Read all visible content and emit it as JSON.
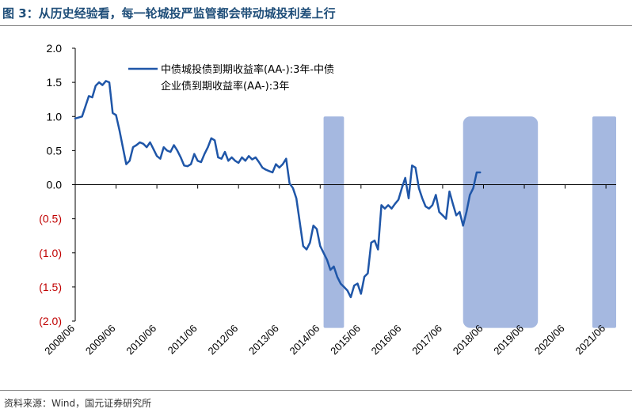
{
  "figure": {
    "title": "图 3：从历史经验看，每一轮城投严监管都会带动城投利差上行",
    "source": "资料来源：Wind，国元证券研究所"
  },
  "colors": {
    "line": "#1f56a8",
    "shade": "#a5b8e0",
    "title": "#1f4e79",
    "negative_tick": "#c00000",
    "axis": "#000000"
  },
  "chart_data": {
    "type": "line",
    "series": [
      {
        "name": "中债城投债到期收益率(AA-):3年-中债企业债到期收益率(AA-):3年",
        "legend_lines": [
          "中债城投债到期收益率(AA-):3年-中债",
          "企业债到期收益率(AA-):3年"
        ],
        "points": [
          [
            "2008-06",
            0.97
          ],
          [
            "2008-08",
            1.0
          ],
          [
            "2008-10",
            1.3
          ],
          [
            "2008-11",
            1.28
          ],
          [
            "2008-12",
            1.45
          ],
          [
            "2009-01",
            1.5
          ],
          [
            "2009-02",
            1.46
          ],
          [
            "2009-03",
            1.52
          ],
          [
            "2009-04",
            1.5
          ],
          [
            "2009-05",
            1.05
          ],
          [
            "2009-06",
            1.02
          ],
          [
            "2009-07",
            0.8
          ],
          [
            "2009-08",
            0.55
          ],
          [
            "2009-09",
            0.3
          ],
          [
            "2009-10",
            0.35
          ],
          [
            "2009-11",
            0.55
          ],
          [
            "2009-12",
            0.58
          ],
          [
            "2010-01",
            0.62
          ],
          [
            "2010-02",
            0.6
          ],
          [
            "2010-03",
            0.55
          ],
          [
            "2010-04",
            0.62
          ],
          [
            "2010-05",
            0.52
          ],
          [
            "2010-06",
            0.42
          ],
          [
            "2010-07",
            0.38
          ],
          [
            "2010-08",
            0.55
          ],
          [
            "2010-09",
            0.5
          ],
          [
            "2010-10",
            0.48
          ],
          [
            "2010-11",
            0.58
          ],
          [
            "2010-12",
            0.5
          ],
          [
            "2011-01",
            0.4
          ],
          [
            "2011-02",
            0.28
          ],
          [
            "2011-03",
            0.27
          ],
          [
            "2011-04",
            0.3
          ],
          [
            "2011-05",
            0.45
          ],
          [
            "2011-06",
            0.35
          ],
          [
            "2011-07",
            0.33
          ],
          [
            "2011-08",
            0.45
          ],
          [
            "2011-09",
            0.55
          ],
          [
            "2011-10",
            0.68
          ],
          [
            "2011-11",
            0.65
          ],
          [
            "2011-12",
            0.4
          ],
          [
            "2012-01",
            0.38
          ],
          [
            "2012-02",
            0.48
          ],
          [
            "2012-03",
            0.35
          ],
          [
            "2012-04",
            0.4
          ],
          [
            "2012-05",
            0.35
          ],
          [
            "2012-06",
            0.32
          ],
          [
            "2012-07",
            0.4
          ],
          [
            "2012-08",
            0.35
          ],
          [
            "2012-09",
            0.42
          ],
          [
            "2012-10",
            0.37
          ],
          [
            "2012-11",
            0.4
          ],
          [
            "2012-12",
            0.33
          ],
          [
            "2013-01",
            0.25
          ],
          [
            "2013-02",
            0.22
          ],
          [
            "2013-03",
            0.2
          ],
          [
            "2013-04",
            0.18
          ],
          [
            "2013-05",
            0.3
          ],
          [
            "2013-06",
            0.25
          ],
          [
            "2013-07",
            0.3
          ],
          [
            "2013-08",
            0.38
          ],
          [
            "2013-09",
            0.02
          ],
          [
            "2013-10",
            -0.05
          ],
          [
            "2013-11",
            -0.2
          ],
          [
            "2013-12",
            -0.55
          ],
          [
            "2014-01",
            -0.9
          ],
          [
            "2014-02",
            -0.95
          ],
          [
            "2014-03",
            -0.85
          ],
          [
            "2014-04",
            -0.6
          ],
          [
            "2014-05",
            -0.65
          ],
          [
            "2014-06",
            -0.9
          ],
          [
            "2014-07",
            -1.0
          ],
          [
            "2014-08",
            -1.1
          ],
          [
            "2014-09",
            -1.25
          ],
          [
            "2014-10",
            -1.2
          ],
          [
            "2014-11",
            -1.35
          ],
          [
            "2014-12",
            -1.45
          ],
          [
            "2015-01",
            -1.5
          ],
          [
            "2015-02",
            -1.55
          ],
          [
            "2015-03",
            -1.65
          ],
          [
            "2015-04",
            -1.48
          ],
          [
            "2015-05",
            -1.45
          ],
          [
            "2015-06",
            -1.6
          ],
          [
            "2015-07",
            -1.35
          ],
          [
            "2015-08",
            -1.3
          ],
          [
            "2015-09",
            -0.85
          ],
          [
            "2015-10",
            -0.82
          ],
          [
            "2015-11",
            -0.95
          ],
          [
            "2015-12",
            -0.3
          ],
          [
            "2016-01",
            -0.35
          ],
          [
            "2016-02",
            -0.3
          ],
          [
            "2016-03",
            -0.35
          ],
          [
            "2016-04",
            -0.28
          ],
          [
            "2016-05",
            -0.22
          ],
          [
            "2016-06",
            -0.05
          ],
          [
            "2016-07",
            0.1
          ],
          [
            "2016-08",
            -0.2
          ],
          [
            "2016-09",
            0.28
          ],
          [
            "2016-10",
            0.25
          ],
          [
            "2016-11",
            -0.05
          ],
          [
            "2016-12",
            -0.2
          ],
          [
            "2017-01",
            -0.32
          ],
          [
            "2017-02",
            -0.35
          ],
          [
            "2017-03",
            -0.3
          ],
          [
            "2017-04",
            -0.15
          ],
          [
            "2017-05",
            -0.4
          ],
          [
            "2017-06",
            -0.45
          ],
          [
            "2017-07",
            -0.5
          ],
          [
            "2017-08",
            -0.1
          ],
          [
            "2017-09",
            -0.28
          ],
          [
            "2017-10",
            -0.45
          ],
          [
            "2017-11",
            -0.4
          ],
          [
            "2017-12",
            -0.6
          ],
          [
            "2018-01",
            -0.4
          ],
          [
            "2018-02",
            -0.15
          ],
          [
            "2018-03",
            -0.05
          ],
          [
            "2018-04",
            0.18
          ],
          [
            "2018-05",
            0.18
          ]
        ]
      }
    ],
    "shaded_periods": [
      [
        "2014-07",
        "2015-01"
      ],
      [
        "2017-12",
        "2019-10"
      ],
      [
        "2021-02",
        "2021-09"
      ]
    ],
    "x_tick_labels": [
      "2008/06",
      "2009/06",
      "2010/06",
      "2011/06",
      "2012/06",
      "2013/06",
      "2014/06",
      "2015/06",
      "2016/06",
      "2017/06",
      "2018/06",
      "2019/06",
      "2020/06",
      "2021/06"
    ],
    "y_ticks": [
      {
        "value": 2.0,
        "label": "2.0"
      },
      {
        "value": 1.5,
        "label": "1.5"
      },
      {
        "value": 1.0,
        "label": "1.0"
      },
      {
        "value": 0.5,
        "label": "0.5"
      },
      {
        "value": 0.0,
        "label": "0.0"
      },
      {
        "value": -0.5,
        "label": "(0.5)"
      },
      {
        "value": -1.0,
        "label": "(1.0)"
      },
      {
        "value": -1.5,
        "label": "(1.5)"
      },
      {
        "value": -2.0,
        "label": "(2.0)"
      }
    ],
    "ylim": [
      -2.0,
      2.0
    ],
    "xlim": [
      "2008-06",
      "2021-09"
    ],
    "grid": false,
    "legend_position": "top-left"
  }
}
